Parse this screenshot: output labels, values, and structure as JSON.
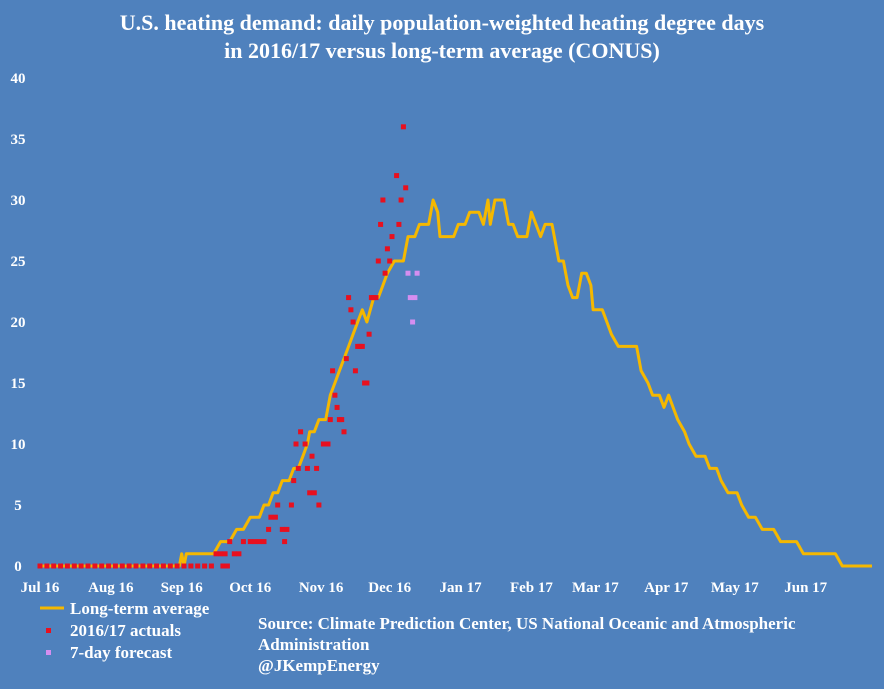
{
  "colors": {
    "background": "#4f81bd",
    "long_term_average": "#f5b800",
    "actuals": "#e8101f",
    "forecast": "#d58ef0",
    "text": "#ffffff"
  },
  "chart_data": {
    "type": "line",
    "title_lines": [
      "U.S. heating demand: daily population-weighted heating degree days",
      "in 2016/17 versus long-term average (CONUS)"
    ],
    "ylim": [
      0,
      40
    ],
    "yticks": [
      0,
      5,
      10,
      15,
      20,
      25,
      30,
      35,
      40
    ],
    "x_range": [
      "2016-07-01",
      "2017-06-30"
    ],
    "xticks": [
      {
        "date": "2016-07-01",
        "label": "Jul 16"
      },
      {
        "date": "2016-08-01",
        "label": "Aug 16"
      },
      {
        "date": "2016-09-01",
        "label": "Sep 16"
      },
      {
        "date": "2016-10-01",
        "label": "Oct 16"
      },
      {
        "date": "2016-11-01",
        "label": "Nov 16"
      },
      {
        "date": "2016-12-01",
        "label": "Dec 16"
      },
      {
        "date": "2017-01-01",
        "label": "Jan 17"
      },
      {
        "date": "2017-02-01",
        "label": "Feb 17"
      },
      {
        "date": "2017-03-01",
        "label": "Mar 17"
      },
      {
        "date": "2017-04-01",
        "label": "Apr 17"
      },
      {
        "date": "2017-05-01",
        "label": "May 17"
      },
      {
        "date": "2017-06-01",
        "label": "Jun 17"
      }
    ],
    "grid": false,
    "legend_position": "bottom-left",
    "series": [
      {
        "name": "Long-term average",
        "style": "line",
        "points": [
          [
            "2016-07-01",
            0
          ],
          [
            "2016-08-31",
            0
          ],
          [
            "2016-09-01",
            1
          ],
          [
            "2016-09-02",
            0
          ],
          [
            "2016-09-03",
            1
          ],
          [
            "2016-09-15",
            1
          ],
          [
            "2016-09-18",
            2
          ],
          [
            "2016-09-22",
            2
          ],
          [
            "2016-09-25",
            3
          ],
          [
            "2016-09-28",
            3
          ],
          [
            "2016-10-01",
            4
          ],
          [
            "2016-10-05",
            4
          ],
          [
            "2016-10-07",
            5
          ],
          [
            "2016-10-09",
            5
          ],
          [
            "2016-10-11",
            6
          ],
          [
            "2016-10-13",
            6
          ],
          [
            "2016-10-15",
            7
          ],
          [
            "2016-10-18",
            7
          ],
          [
            "2016-10-20",
            8
          ],
          [
            "2016-10-22",
            8
          ],
          [
            "2016-10-24",
            9
          ],
          [
            "2016-10-26",
            10
          ],
          [
            "2016-10-27",
            11
          ],
          [
            "2016-10-29",
            11
          ],
          [
            "2016-10-31",
            12
          ],
          [
            "2016-11-03",
            12
          ],
          [
            "2016-11-05",
            14
          ],
          [
            "2016-11-07",
            15
          ],
          [
            "2016-11-09",
            16
          ],
          [
            "2016-11-11",
            17
          ],
          [
            "2016-11-13",
            18
          ],
          [
            "2016-11-15",
            19
          ],
          [
            "2016-11-17",
            20
          ],
          [
            "2016-11-19",
            21
          ],
          [
            "2016-11-21",
            20
          ],
          [
            "2016-11-24",
            22
          ],
          [
            "2016-11-26",
            22
          ],
          [
            "2016-11-28",
            23
          ],
          [
            "2016-11-30",
            24
          ],
          [
            "2016-12-03",
            25
          ],
          [
            "2016-12-07",
            25
          ],
          [
            "2016-12-09",
            27
          ],
          [
            "2016-12-12",
            27
          ],
          [
            "2016-12-14",
            28
          ],
          [
            "2016-12-18",
            28
          ],
          [
            "2016-12-20",
            30
          ],
          [
            "2016-12-22",
            29
          ],
          [
            "2016-12-23",
            27
          ],
          [
            "2016-12-29",
            27
          ],
          [
            "2016-12-31",
            28
          ],
          [
            "2017-01-03",
            28
          ],
          [
            "2017-01-05",
            29
          ],
          [
            "2017-01-09",
            29
          ],
          [
            "2017-01-11",
            28
          ],
          [
            "2017-01-13",
            30
          ],
          [
            "2017-01-14",
            28
          ],
          [
            "2017-01-16",
            30
          ],
          [
            "2017-01-20",
            30
          ],
          [
            "2017-01-22",
            28
          ],
          [
            "2017-01-24",
            28
          ],
          [
            "2017-01-26",
            27
          ],
          [
            "2017-01-30",
            27
          ],
          [
            "2017-02-01",
            29
          ],
          [
            "2017-02-03",
            28
          ],
          [
            "2017-02-05",
            27
          ],
          [
            "2017-02-07",
            28
          ],
          [
            "2017-02-10",
            28
          ],
          [
            "2017-02-13",
            25
          ],
          [
            "2017-02-15",
            25
          ],
          [
            "2017-02-17",
            23
          ],
          [
            "2017-02-19",
            22
          ],
          [
            "2017-02-21",
            22
          ],
          [
            "2017-02-23",
            24
          ],
          [
            "2017-02-25",
            24
          ],
          [
            "2017-02-27",
            23
          ],
          [
            "2017-02-28",
            21
          ],
          [
            "2017-03-04",
            21
          ],
          [
            "2017-03-06",
            20
          ],
          [
            "2017-03-08",
            19
          ],
          [
            "2017-03-11",
            18
          ],
          [
            "2017-03-19",
            18
          ],
          [
            "2017-03-21",
            16
          ],
          [
            "2017-03-24",
            15
          ],
          [
            "2017-03-26",
            14
          ],
          [
            "2017-03-29",
            14
          ],
          [
            "2017-03-31",
            13
          ],
          [
            "2017-04-02",
            14
          ],
          [
            "2017-04-04",
            13
          ],
          [
            "2017-04-06",
            12
          ],
          [
            "2017-04-09",
            11
          ],
          [
            "2017-04-11",
            10
          ],
          [
            "2017-04-14",
            9
          ],
          [
            "2017-04-18",
            9
          ],
          [
            "2017-04-20",
            8
          ],
          [
            "2017-04-23",
            8
          ],
          [
            "2017-04-25",
            7
          ],
          [
            "2017-04-28",
            6
          ],
          [
            "2017-05-02",
            6
          ],
          [
            "2017-05-04",
            5
          ],
          [
            "2017-05-07",
            4
          ],
          [
            "2017-05-10",
            4
          ],
          [
            "2017-05-13",
            3
          ],
          [
            "2017-05-18",
            3
          ],
          [
            "2017-05-21",
            2
          ],
          [
            "2017-05-28",
            2
          ],
          [
            "2017-05-31",
            1
          ],
          [
            "2017-06-14",
            1
          ],
          [
            "2017-06-17",
            0
          ],
          [
            "2017-06-30",
            0
          ]
        ]
      },
      {
        "name": "2016/17 actuals",
        "style": "points",
        "points": [
          [
            "2016-07-01",
            0
          ],
          [
            "2016-07-04",
            0
          ],
          [
            "2016-07-07",
            0
          ],
          [
            "2016-07-10",
            0
          ],
          [
            "2016-07-13",
            0
          ],
          [
            "2016-07-16",
            0
          ],
          [
            "2016-07-19",
            0
          ],
          [
            "2016-07-22",
            0
          ],
          [
            "2016-07-25",
            0
          ],
          [
            "2016-07-28",
            0
          ],
          [
            "2016-07-31",
            0
          ],
          [
            "2016-08-03",
            0
          ],
          [
            "2016-08-06",
            0
          ],
          [
            "2016-08-09",
            0
          ],
          [
            "2016-08-12",
            0
          ],
          [
            "2016-08-15",
            0
          ],
          [
            "2016-08-18",
            0
          ],
          [
            "2016-08-21",
            0
          ],
          [
            "2016-08-24",
            0
          ],
          [
            "2016-08-27",
            0
          ],
          [
            "2016-08-30",
            0
          ],
          [
            "2016-09-02",
            0
          ],
          [
            "2016-09-05",
            0
          ],
          [
            "2016-09-08",
            0
          ],
          [
            "2016-09-11",
            0
          ],
          [
            "2016-09-14",
            0
          ],
          [
            "2016-09-16",
            1
          ],
          [
            "2016-09-18",
            1
          ],
          [
            "2016-09-19",
            0
          ],
          [
            "2016-09-20",
            1
          ],
          [
            "2016-09-21",
            0
          ],
          [
            "2016-09-22",
            2
          ],
          [
            "2016-09-24",
            1
          ],
          [
            "2016-09-26",
            1
          ],
          [
            "2016-09-28",
            2
          ],
          [
            "2016-10-01",
            2
          ],
          [
            "2016-10-03",
            2
          ],
          [
            "2016-10-05",
            2
          ],
          [
            "2016-10-07",
            2
          ],
          [
            "2016-10-09",
            3
          ],
          [
            "2016-10-10",
            4
          ],
          [
            "2016-10-12",
            4
          ],
          [
            "2016-10-13",
            5
          ],
          [
            "2016-10-15",
            3
          ],
          [
            "2016-10-16",
            2
          ],
          [
            "2016-10-17",
            3
          ],
          [
            "2016-10-19",
            5
          ],
          [
            "2016-10-20",
            7
          ],
          [
            "2016-10-21",
            10
          ],
          [
            "2016-10-22",
            8
          ],
          [
            "2016-10-23",
            11
          ],
          [
            "2016-10-25",
            10
          ],
          [
            "2016-10-26",
            8
          ],
          [
            "2016-10-27",
            6
          ],
          [
            "2016-10-28",
            9
          ],
          [
            "2016-10-29",
            6
          ],
          [
            "2016-10-30",
            8
          ],
          [
            "2016-10-31",
            5
          ],
          [
            "2016-11-02",
            10
          ],
          [
            "2016-11-04",
            10
          ],
          [
            "2016-11-05",
            12
          ],
          [
            "2016-11-06",
            16
          ],
          [
            "2016-11-07",
            14
          ],
          [
            "2016-11-08",
            13
          ],
          [
            "2016-11-09",
            12
          ],
          [
            "2016-11-10",
            12
          ],
          [
            "2016-11-11",
            11
          ],
          [
            "2016-11-12",
            17
          ],
          [
            "2016-11-13",
            22
          ],
          [
            "2016-11-14",
            21
          ],
          [
            "2016-11-15",
            20
          ],
          [
            "2016-11-16",
            16
          ],
          [
            "2016-11-17",
            18
          ],
          [
            "2016-11-18",
            18
          ],
          [
            "2016-11-19",
            18
          ],
          [
            "2016-11-20",
            15
          ],
          [
            "2016-11-21",
            15
          ],
          [
            "2016-11-22",
            19
          ],
          [
            "2016-11-23",
            22
          ],
          [
            "2016-11-24",
            22
          ],
          [
            "2016-11-25",
            22
          ],
          [
            "2016-11-26",
            25
          ],
          [
            "2016-11-27",
            28
          ],
          [
            "2016-11-28",
            30
          ],
          [
            "2016-11-29",
            24
          ],
          [
            "2016-11-30",
            26
          ],
          [
            "2016-12-01",
            25
          ],
          [
            "2016-12-02",
            27
          ],
          [
            "2016-12-04",
            32
          ],
          [
            "2016-12-05",
            28
          ],
          [
            "2016-12-06",
            30
          ],
          [
            "2016-12-07",
            36
          ],
          [
            "2016-12-08",
            31
          ]
        ]
      },
      {
        "name": "7-day forecast",
        "style": "points",
        "points": [
          [
            "2016-12-09",
            24
          ],
          [
            "2016-12-10",
            22
          ],
          [
            "2016-12-11",
            20
          ],
          [
            "2016-12-12",
            22
          ],
          [
            "2016-12-13",
            24
          ]
        ]
      }
    ]
  },
  "source": {
    "lines": [
      "Source: Climate Prediction Center, US National Oceanic and Atmospheric",
      "Administration",
      "@JKempEnergy"
    ]
  }
}
